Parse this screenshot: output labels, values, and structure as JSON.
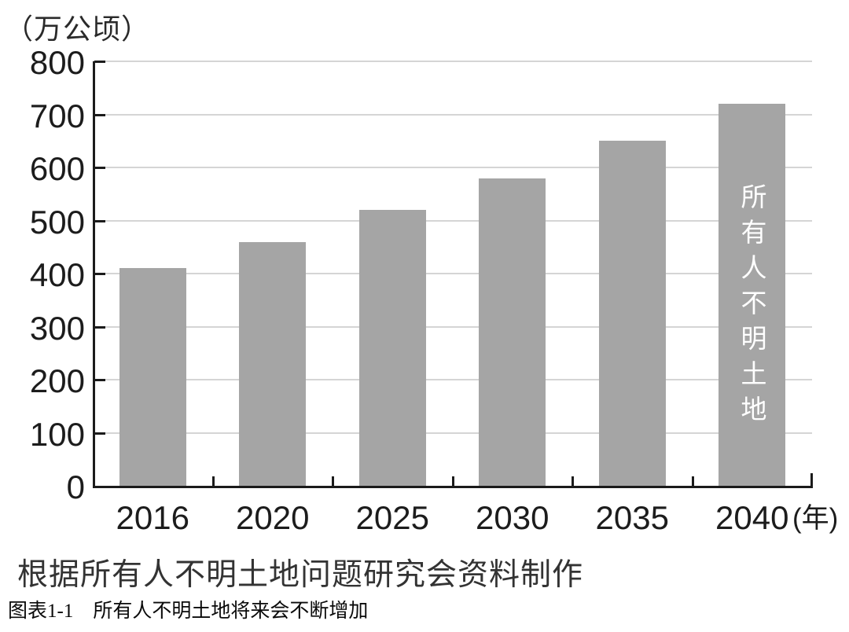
{
  "chart_data": {
    "type": "bar",
    "title": "",
    "unit_label": "（万公顷）",
    "categories": [
      "2016",
      "2020",
      "2025",
      "2030",
      "2035",
      "2040"
    ],
    "values": [
      410,
      460,
      520,
      580,
      650,
      720
    ],
    "x_axis_suffix": "(年)",
    "ylim": [
      0,
      800
    ],
    "ytick_interval": 100,
    "ytick_labels": [
      "0",
      "100",
      "200",
      "300",
      "400",
      "500",
      "600",
      "700",
      "800"
    ],
    "bar_color": "#a5a5a5",
    "grid": "horizontal",
    "legend_position": "none",
    "last_bar_inner_label": "所有人不明土地",
    "last_bar_label_color": "#ffffff"
  },
  "footer": {
    "source": "根据所有人不明土地问题研究会资料制作",
    "caption": "图表1-1　所有人不明土地将来会不断增加"
  }
}
